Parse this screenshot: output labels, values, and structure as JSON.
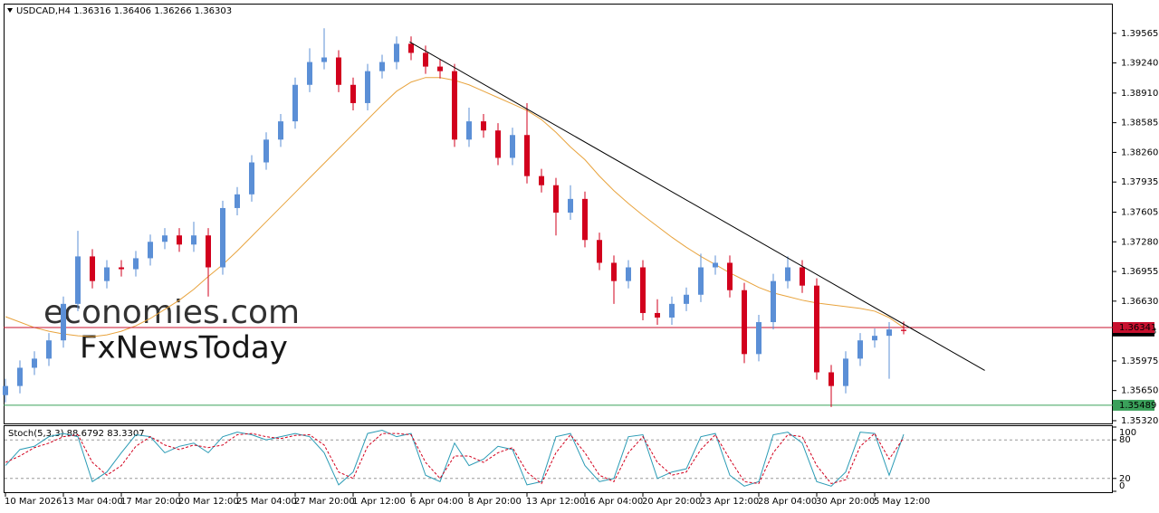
{
  "chart_data": {
    "type": "candlestick",
    "symbol": "USDCAD,H4",
    "bull_color": "#5b8fd6",
    "bear_color": "#d2001d",
    "categories": [
      "10 Mar 2026",
      null,
      null,
      null,
      "13 Mar 04:00",
      null,
      null,
      null,
      "17 Mar 20:00",
      null,
      null,
      null,
      "20 Mar 12:00",
      null,
      null,
      null,
      "25 Mar 04:00",
      null,
      null,
      null,
      "27 Mar 20:00",
      null,
      null,
      null,
      "1 Apr 12:00",
      null,
      null,
      null,
      "6 Apr 04:00",
      null,
      null,
      null,
      "8 Apr 20:00",
      null,
      null,
      null,
      "13 Apr 12:00",
      null,
      null,
      null,
      "16 Apr 04:00",
      null,
      null,
      null,
      "20 Apr 20:00",
      null,
      null,
      null,
      "23 Apr 12:00",
      null,
      null,
      null,
      "28 Apr 04:00",
      null,
      null,
      null,
      "30 Apr 20:00",
      null,
      null,
      null,
      "5 May 12:00",
      null,
      null
    ],
    "candles": [
      [
        1.356,
        1.3578,
        1.3552,
        1.357
      ],
      [
        1.357,
        1.3598,
        1.3562,
        1.359
      ],
      [
        1.359,
        1.3608,
        1.3582,
        1.36
      ],
      [
        1.36,
        1.3628,
        1.3592,
        1.362
      ],
      [
        1.362,
        1.3668,
        1.3612,
        1.366
      ],
      [
        1.366,
        1.374,
        1.3652,
        1.3712
      ],
      [
        1.3712,
        1.372,
        1.3677,
        1.3685
      ],
      [
        1.3685,
        1.3708,
        1.3677,
        1.37
      ],
      [
        1.37,
        1.3708,
        1.369,
        1.3698
      ],
      [
        1.3698,
        1.3718,
        1.369,
        1.371
      ],
      [
        1.371,
        1.3736,
        1.3702,
        1.3728
      ],
      [
        1.3728,
        1.3743,
        1.372,
        1.3735
      ],
      [
        1.3735,
        1.3743,
        1.3717,
        1.3725
      ],
      [
        1.3725,
        1.375,
        1.3717,
        1.3735
      ],
      [
        1.3735,
        1.3743,
        1.3668,
        1.37
      ],
      [
        1.37,
        1.3773,
        1.3692,
        1.3765
      ],
      [
        1.3765,
        1.3788,
        1.3757,
        1.378
      ],
      [
        1.378,
        1.3823,
        1.3772,
        1.3815
      ],
      [
        1.3815,
        1.3848,
        1.3807,
        1.384
      ],
      [
        1.384,
        1.3868,
        1.3832,
        1.386
      ],
      [
        1.386,
        1.3908,
        1.3852,
        1.39
      ],
      [
        1.39,
        1.394,
        1.3892,
        1.3925
      ],
      [
        1.3925,
        1.3962,
        1.3917,
        1.393
      ],
      [
        1.393,
        1.3938,
        1.3892,
        1.39
      ],
      [
        1.39,
        1.3908,
        1.3872,
        1.388
      ],
      [
        1.388,
        1.3923,
        1.3872,
        1.3915
      ],
      [
        1.3915,
        1.3933,
        1.3907,
        1.3925
      ],
      [
        1.3925,
        1.3953,
        1.3917,
        1.3945
      ],
      [
        1.3945,
        1.3953,
        1.3927,
        1.3935
      ],
      [
        1.3935,
        1.3943,
        1.3912,
        1.392
      ],
      [
        1.392,
        1.3928,
        1.3907,
        1.3915
      ],
      [
        1.3915,
        1.3923,
        1.3832,
        1.384
      ],
      [
        1.384,
        1.3875,
        1.3832,
        1.386
      ],
      [
        1.386,
        1.3868,
        1.3842,
        1.385
      ],
      [
        1.385,
        1.3858,
        1.3812,
        1.382
      ],
      [
        1.382,
        1.3853,
        1.3812,
        1.3845
      ],
      [
        1.3845,
        1.388,
        1.3792,
        1.38
      ],
      [
        1.38,
        1.3808,
        1.3782,
        1.379
      ],
      [
        1.379,
        1.3798,
        1.3735,
        1.376
      ],
      [
        1.376,
        1.379,
        1.3752,
        1.3775
      ],
      [
        1.3775,
        1.3783,
        1.3722,
        1.373
      ],
      [
        1.373,
        1.3738,
        1.3697,
        1.3705
      ],
      [
        1.3705,
        1.3713,
        1.366,
        1.3685
      ],
      [
        1.3685,
        1.3708,
        1.3677,
        1.37
      ],
      [
        1.37,
        1.3708,
        1.3642,
        1.365
      ],
      [
        1.365,
        1.3665,
        1.3637,
        1.3645
      ],
      [
        1.3645,
        1.3668,
        1.3637,
        1.366
      ],
      [
        1.366,
        1.3678,
        1.3652,
        1.367
      ],
      [
        1.367,
        1.3715,
        1.3662,
        1.37
      ],
      [
        1.37,
        1.3713,
        1.3692,
        1.3705
      ],
      [
        1.3705,
        1.3713,
        1.3667,
        1.3675
      ],
      [
        1.3675,
        1.3683,
        1.3595,
        1.3605
      ],
      [
        1.3605,
        1.3648,
        1.3597,
        1.364
      ],
      [
        1.364,
        1.3693,
        1.3632,
        1.3685
      ],
      [
        1.3685,
        1.3712,
        1.3677,
        1.37
      ],
      [
        1.37,
        1.3708,
        1.3672,
        1.368
      ],
      [
        1.368,
        1.3688,
        1.3577,
        1.3585
      ],
      [
        1.3585,
        1.3593,
        1.3547,
        1.357
      ],
      [
        1.357,
        1.3608,
        1.3562,
        1.36
      ],
      [
        1.36,
        1.3628,
        1.3592,
        1.362
      ],
      [
        1.362,
        1.3633,
        1.3612,
        1.3625
      ],
      [
        1.3625,
        1.364,
        1.3578,
        1.3632
      ],
      [
        1.36316,
        1.36406,
        1.36266,
        1.36303
      ]
    ],
    "ylim": [
      1.3528,
      1.3989
    ],
    "yticks": [
      1.39565,
      {
        "value": 1.3924,
        "label": "1.39240"
      },
      {
        "value": 1.3891,
        "label": "1.38910"
      },
      1.38585,
      {
        "value": 1.3826,
        "label": "1.38260"
      },
      1.37935,
      1.37605,
      {
        "value": 1.3728,
        "label": "1.37280"
      },
      1.36955,
      {
        "value": 1.3663,
        "label": "1.36630"
      },
      1.35975,
      {
        "value": 1.3565,
        "label": "1.35650"
      },
      {
        "value": 1.3532,
        "label": "1.35320"
      }
    ],
    "moving_average": {
      "color": "#e8a33d",
      "values": [
        1.3646,
        1.364,
        1.3634,
        1.363,
        1.3627,
        1.3625,
        1.3624,
        1.3626,
        1.363,
        1.3636,
        1.3644,
        1.3654,
        1.3664,
        1.3676,
        1.369,
        1.3703,
        1.3718,
        1.3734,
        1.375,
        1.3766,
        1.3782,
        1.3798,
        1.3814,
        1.383,
        1.3846,
        1.3862,
        1.3878,
        1.3893,
        1.3903,
        1.3908,
        1.3908,
        1.3905,
        1.39,
        1.3893,
        1.3886,
        1.3879,
        1.3872,
        1.3862,
        1.3848,
        1.3832,
        1.3818,
        1.38,
        1.3784,
        1.377,
        1.3757,
        1.3745,
        1.3733,
        1.3722,
        1.3712,
        1.3703,
        1.3694,
        1.3686,
        1.3678,
        1.3672,
        1.3668,
        1.3664,
        1.3661,
        1.3659,
        1.3657,
        1.3655,
        1.3652,
        1.3645,
        1.3634
      ]
    },
    "trendline": {
      "color": "#000000",
      "x": [
        27.9,
        67.6
      ],
      "values": [
        1.3947,
        1.3587
      ]
    },
    "hlines": [
      {
        "value": 1.36341,
        "color": "#c8102e"
      },
      {
        "value": 1.35489,
        "color": "#3aa05a"
      }
    ],
    "stochastic": {
      "title": "Stoch(5,3,3)",
      "ylim": [
        0,
        100
      ],
      "yticks": [
        100,
        80,
        20,
        0
      ],
      "levels": [
        80,
        20
      ],
      "series": [
        {
          "color": "#2a9bb5",
          "values": [
            40,
            65,
            70,
            85,
            90,
            85,
            15,
            30,
            60,
            88,
            85,
            60,
            70,
            75,
            60,
            85,
            92,
            88,
            80,
            85,
            90,
            85,
            60,
            10,
            30,
            90,
            95,
            85,
            90,
            25,
            15,
            75,
            40,
            50,
            70,
            65,
            10,
            15,
            85,
            90,
            40,
            15,
            20,
            85,
            88,
            20,
            30,
            35,
            85,
            90,
            25,
            8,
            15,
            88,
            92,
            75,
            15,
            8,
            30,
            92,
            90,
            25,
            88.6792
          ]
        },
        {
          "color": "#d2001d",
          "values": [
            45,
            55,
            68,
            75,
            85,
            88,
            45,
            25,
            40,
            70,
            85,
            72,
            65,
            72,
            68,
            72,
            88,
            90,
            85,
            82,
            87,
            88,
            72,
            30,
            20,
            70,
            90,
            90,
            88,
            45,
            20,
            55,
            55,
            45,
            60,
            68,
            30,
            12,
            60,
            88,
            60,
            25,
            15,
            60,
            85,
            45,
            25,
            30,
            65,
            88,
            50,
            15,
            12,
            60,
            88,
            85,
            40,
            12,
            18,
            70,
            90,
            50,
            83.3307
          ]
        }
      ]
    },
    "watermarks": [
      "economies.com",
      "FxNewsToday"
    ]
  }
}
